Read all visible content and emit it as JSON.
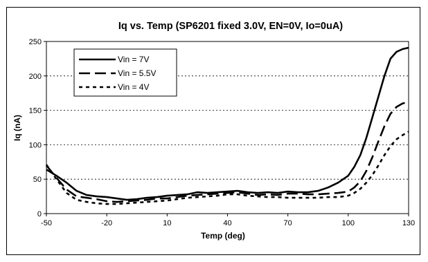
{
  "chart_data": {
    "type": "line",
    "title": "Iq vs. Temp (SP6201 fixed 3.0V, EN=0V, Io=0uA)",
    "xlabel": "Temp (deg)",
    "ylabel": "Iq (nA)",
    "xlim": [
      -50,
      130
    ],
    "ylim": [
      0,
      250
    ],
    "x_ticks": [
      -50,
      -20,
      10,
      40,
      70,
      100,
      130
    ],
    "y_ticks": [
      0,
      50,
      100,
      150,
      200,
      250
    ],
    "grid": "horizontal dotted",
    "legend_position": "top-left",
    "series": [
      {
        "name": "Vin = 7V",
        "style": "solid",
        "color": "#000000",
        "points": [
          [
            -50,
            64
          ],
          [
            -45,
            55
          ],
          [
            -40,
            45
          ],
          [
            -35,
            33
          ],
          [
            -30,
            27
          ],
          [
            -25,
            25
          ],
          [
            -20,
            24
          ],
          [
            -15,
            22
          ],
          [
            -10,
            20
          ],
          [
            -5,
            21
          ],
          [
            0,
            23
          ],
          [
            5,
            24
          ],
          [
            10,
            26
          ],
          [
            15,
            27
          ],
          [
            20,
            28
          ],
          [
            25,
            31
          ],
          [
            30,
            30
          ],
          [
            35,
            31
          ],
          [
            40,
            32
          ],
          [
            45,
            33
          ],
          [
            50,
            31
          ],
          [
            55,
            30
          ],
          [
            60,
            31
          ],
          [
            65,
            30
          ],
          [
            70,
            32
          ],
          [
            75,
            31
          ],
          [
            80,
            31
          ],
          [
            85,
            33
          ],
          [
            90,
            38
          ],
          [
            95,
            45
          ],
          [
            100,
            55
          ],
          [
            103,
            68
          ],
          [
            106,
            85
          ],
          [
            109,
            110
          ],
          [
            112,
            140
          ],
          [
            115,
            170
          ],
          [
            118,
            200
          ],
          [
            121,
            225
          ],
          [
            124,
            235
          ],
          [
            127,
            239
          ],
          [
            130,
            241
          ]
        ]
      },
      {
        "name": "Vin = 5.5V",
        "style": "long-dash",
        "color": "#000000",
        "points": [
          [
            -50,
            70
          ],
          [
            -45,
            52
          ],
          [
            -40,
            35
          ],
          [
            -35,
            25
          ],
          [
            -30,
            23
          ],
          [
            -25,
            21
          ],
          [
            -20,
            18
          ],
          [
            -15,
            17
          ],
          [
            -10,
            18
          ],
          [
            -5,
            19
          ],
          [
            0,
            20
          ],
          [
            5,
            22
          ],
          [
            10,
            22
          ],
          [
            15,
            24
          ],
          [
            20,
            26
          ],
          [
            25,
            27
          ],
          [
            30,
            28
          ],
          [
            35,
            29
          ],
          [
            40,
            30
          ],
          [
            45,
            31
          ],
          [
            50,
            29
          ],
          [
            55,
            27
          ],
          [
            60,
            28
          ],
          [
            65,
            27
          ],
          [
            70,
            29
          ],
          [
            75,
            29
          ],
          [
            80,
            28
          ],
          [
            85,
            28
          ],
          [
            90,
            29
          ],
          [
            95,
            30
          ],
          [
            100,
            32
          ],
          [
            103,
            38
          ],
          [
            106,
            47
          ],
          [
            109,
            62
          ],
          [
            112,
            82
          ],
          [
            115,
            105
          ],
          [
            118,
            127
          ],
          [
            121,
            145
          ],
          [
            124,
            155
          ],
          [
            127,
            160
          ],
          [
            130,
            162
          ]
        ]
      },
      {
        "name": "Vin = 4V",
        "style": "short-dash",
        "color": "#000000",
        "points": [
          [
            -50,
            71
          ],
          [
            -45,
            50
          ],
          [
            -40,
            30
          ],
          [
            -35,
            20
          ],
          [
            -30,
            17
          ],
          [
            -25,
            15
          ],
          [
            -20,
            14
          ],
          [
            -15,
            14
          ],
          [
            -10,
            15
          ],
          [
            -5,
            16
          ],
          [
            0,
            17
          ],
          [
            5,
            18
          ],
          [
            10,
            19
          ],
          [
            15,
            21
          ],
          [
            20,
            23
          ],
          [
            25,
            24
          ],
          [
            30,
            25
          ],
          [
            35,
            26
          ],
          [
            40,
            28
          ],
          [
            45,
            28
          ],
          [
            50,
            26
          ],
          [
            55,
            25
          ],
          [
            60,
            24
          ],
          [
            65,
            24
          ],
          [
            70,
            23
          ],
          [
            75,
            23
          ],
          [
            80,
            23
          ],
          [
            85,
            23
          ],
          [
            90,
            24
          ],
          [
            95,
            24
          ],
          [
            100,
            26
          ],
          [
            103,
            30
          ],
          [
            106,
            36
          ],
          [
            109,
            45
          ],
          [
            112,
            56
          ],
          [
            115,
            70
          ],
          [
            118,
            85
          ],
          [
            121,
            98
          ],
          [
            124,
            108
          ],
          [
            127,
            114
          ],
          [
            130,
            119
          ]
        ]
      }
    ]
  }
}
